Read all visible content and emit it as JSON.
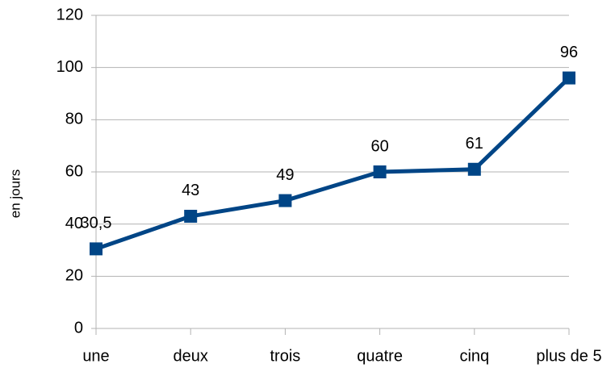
{
  "chart_data": {
    "type": "line",
    "y_label": "en jours",
    "categories": [
      "une",
      "deux",
      "trois",
      "quatre",
      "cinq",
      "plus de 5"
    ],
    "values": [
      30.5,
      43,
      49,
      60,
      61,
      96
    ],
    "value_labels": [
      "30,5",
      "43",
      "49",
      "60",
      "61",
      "96"
    ],
    "color": "#004586",
    "ylim": [
      0,
      120
    ],
    "yticks": [
      0,
      20,
      40,
      60,
      80,
      100,
      120
    ],
    "grid": true
  }
}
